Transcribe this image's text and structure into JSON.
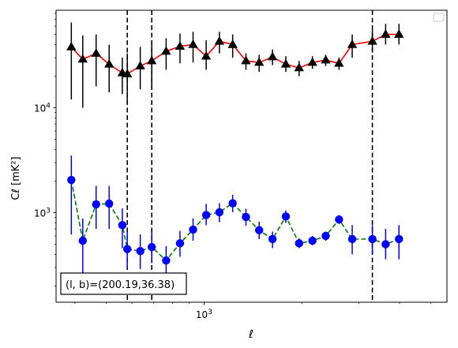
{
  "chart_data": {
    "type": "scatter",
    "xscale": "log",
    "yscale": "log",
    "xlim": [
      350,
      5600
    ],
    "ylim": [
      140,
      85000
    ],
    "xlabel": "ℓ",
    "ylabel": "Cℓ  [mK²]",
    "x_tick_labels": [
      {
        "value": 1000,
        "base": "10",
        "exp": "3"
      }
    ],
    "y_tick_labels": [
      {
        "value": 1000,
        "base": "10",
        "exp": "3"
      },
      {
        "value": 10000,
        "base": "10",
        "exp": "4"
      }
    ],
    "legend": {
      "placement": "top-right",
      "entries": []
    },
    "annotation": "(l, b)=(200.19,36.38)",
    "vlines": [
      580,
      690,
      3300
    ],
    "series": [
      {
        "color": "#ff0000",
        "marker": "triangle",
        "marker_color": "#000000",
        "errorbar_color": "#000000",
        "line_style": "solid",
        "x": [
          390,
          423,
          465,
          510,
          560,
          580,
          636,
          690,
          764,
          843,
          925,
          1015,
          1115,
          1225,
          1346,
          1478,
          1625,
          1786,
          1962,
          2157,
          2370,
          2605,
          2860,
          3300,
          3625,
          3985
        ],
        "y": [
          38000,
          29000,
          33000,
          26000,
          21500,
          21000,
          25000,
          28000,
          34500,
          38500,
          40000,
          31000,
          43000,
          40000,
          28000,
          27000,
          30500,
          26000,
          24000,
          27000,
          28500,
          26500,
          40000,
          43000,
          50000,
          50000
        ],
        "yerr_low": [
          12000,
          10000,
          16000,
          14000,
          13500,
          11000,
          15000,
          16000,
          23000,
          26500,
          27000,
          23000,
          33000,
          30000,
          23000,
          22000,
          25500,
          22000,
          20000,
          23500,
          25000,
          23000,
          30000,
          34000,
          40000,
          40000
        ],
        "yerr_high": [
          65000,
          49000,
          50000,
          40000,
          30000,
          33000,
          38000,
          43000,
          46000,
          51000,
          53000,
          44000,
          53000,
          50000,
          33000,
          32000,
          36000,
          31000,
          28000,
          31000,
          32000,
          30000,
          50000,
          55000,
          63000,
          63000
        ]
      },
      {
        "color": "#008000",
        "marker": "circle",
        "marker_color": "#0000ff",
        "errorbar_color": "#0000ff",
        "line_style": "dashed",
        "x": [
          390,
          423,
          465,
          510,
          560,
          580,
          636,
          690,
          764,
          843,
          925,
          1015,
          1115,
          1225,
          1346,
          1478,
          1625,
          1786,
          1962,
          2157,
          2370,
          2605,
          2860,
          3300,
          3625,
          3985
        ],
        "y": [
          2050,
          540,
          1200,
          1220,
          760,
          450,
          430,
          470,
          350,
          510,
          690,
          950,
          1010,
          1230,
          910,
          680,
          560,
          920,
          510,
          540,
          600,
          860,
          560,
          560,
          500,
          560
        ],
        "yerr_low": [
          620,
          230,
          700,
          700,
          460,
          300,
          290,
          330,
          240,
          380,
          540,
          760,
          810,
          1010,
          750,
          560,
          460,
          800,
          460,
          490,
          540,
          780,
          400,
          400,
          360,
          360
        ],
        "yerr_high": [
          3500,
          880,
          1800,
          1800,
          1100,
          650,
          620,
          650,
          480,
          670,
          880,
          1210,
          1230,
          1480,
          1090,
          820,
          660,
          1050,
          570,
          600,
          660,
          950,
          760,
          760,
          700,
          760
        ]
      }
    ]
  }
}
